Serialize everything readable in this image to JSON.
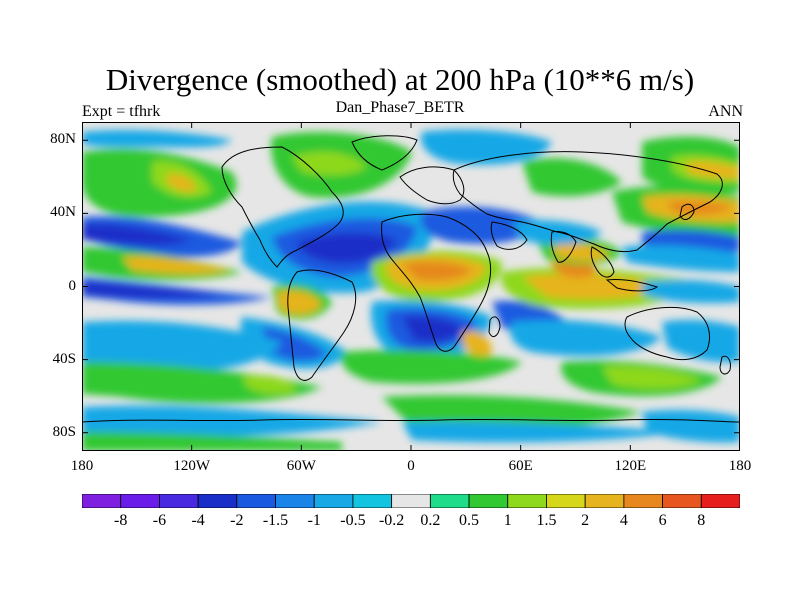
{
  "title": "Divergence (smoothed) at 200 hPa (10**6 m/s)",
  "left_subtitle": "Expt = tfhrk",
  "center_subtitle": "Dan_Phase7_BETR",
  "right_subtitle": "ANN",
  "lat_labels": [
    "80N",
    "40N",
    "0",
    "40S",
    "80S"
  ],
  "lat_values": [
    80,
    40,
    0,
    -40,
    -80
  ],
  "lon_labels": [
    "180",
    "120W",
    "60W",
    "0",
    "60E",
    "120E",
    "180"
  ],
  "lon_values": [
    -180,
    -120,
    -60,
    0,
    60,
    120,
    180
  ],
  "colorbar": {
    "labels": [
      "-8",
      "-6",
      "-4",
      "-2",
      "-1.5",
      "-1",
      "-0.5",
      "-0.2",
      "0.2",
      "0.5",
      "1",
      "1.5",
      "2",
      "4",
      "6",
      "8"
    ],
    "colors": [
      "#7f1fe0",
      "#6a1ce8",
      "#4a2ae0",
      "#1a2ec8",
      "#1a5ae0",
      "#1a84e8",
      "#18a8e6",
      "#12c4e0",
      "#e6e6e6",
      "#1fdc8a",
      "#32c832",
      "#8ed81e",
      "#d6d61a",
      "#e6b41e",
      "#e6881e",
      "#e6561e",
      "#e61e1e"
    ]
  },
  "colors": {
    "ocean_bg": "#e6e6e6",
    "coast": "#000000"
  }
}
